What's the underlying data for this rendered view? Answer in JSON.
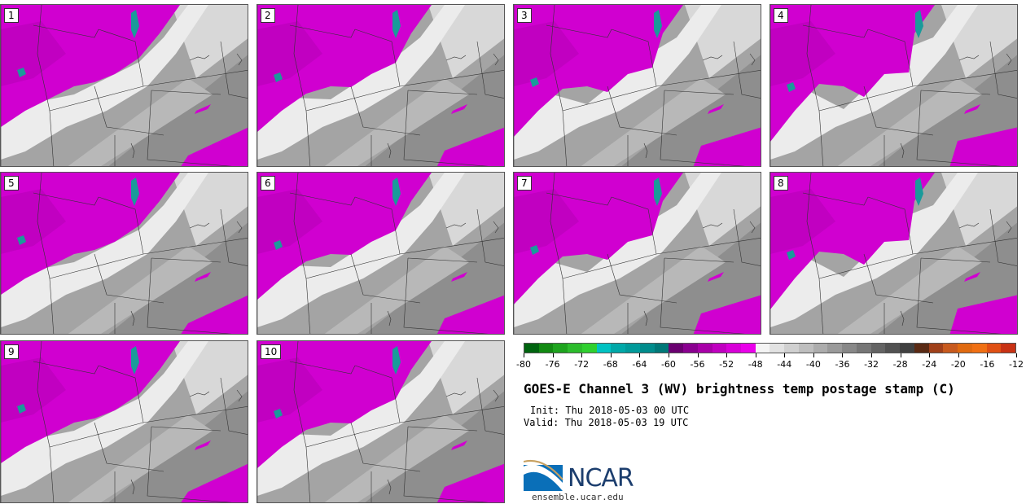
{
  "panels": [
    "1",
    "2",
    "3",
    "4",
    "5",
    "6",
    "7",
    "8",
    "9",
    "10"
  ],
  "colorbar": {
    "colors": [
      "#00640f",
      "#128a12",
      "#1ea41e",
      "#2cbc2c",
      "#30d030",
      "#00c2c2",
      "#00a8a8",
      "#009a9a",
      "#008c8c",
      "#007878",
      "#6a0070",
      "#8a0090",
      "#a800a8",
      "#c000c0",
      "#d800d8",
      "#ea00ea",
      "#f4f4f4",
      "#e2e2e2",
      "#d0d0d0",
      "#bebebe",
      "#acacac",
      "#9a9a9a",
      "#888888",
      "#767676",
      "#646464",
      "#525252",
      "#404040",
      "#5a2a14",
      "#a0401a",
      "#c85a1e",
      "#e06a10",
      "#f07014",
      "#e05014",
      "#c83214"
    ],
    "ticks": [
      "-80",
      "-76",
      "-72",
      "-68",
      "-64",
      "-60",
      "-56",
      "-52",
      "-48",
      "-44",
      "-40",
      "-36",
      "-32",
      "-28",
      "-24",
      "-20",
      "-16",
      "-12"
    ]
  },
  "title": "GOES-E Channel 3 (WV) brightness temp postage stamp (C)",
  "init": "Init: Thu 2018-05-03 00 UTC",
  "valid": "Valid: Thu 2018-05-03 19 UTC",
  "logo_text": "NCAR",
  "site": "ensemble.ucar.edu"
}
